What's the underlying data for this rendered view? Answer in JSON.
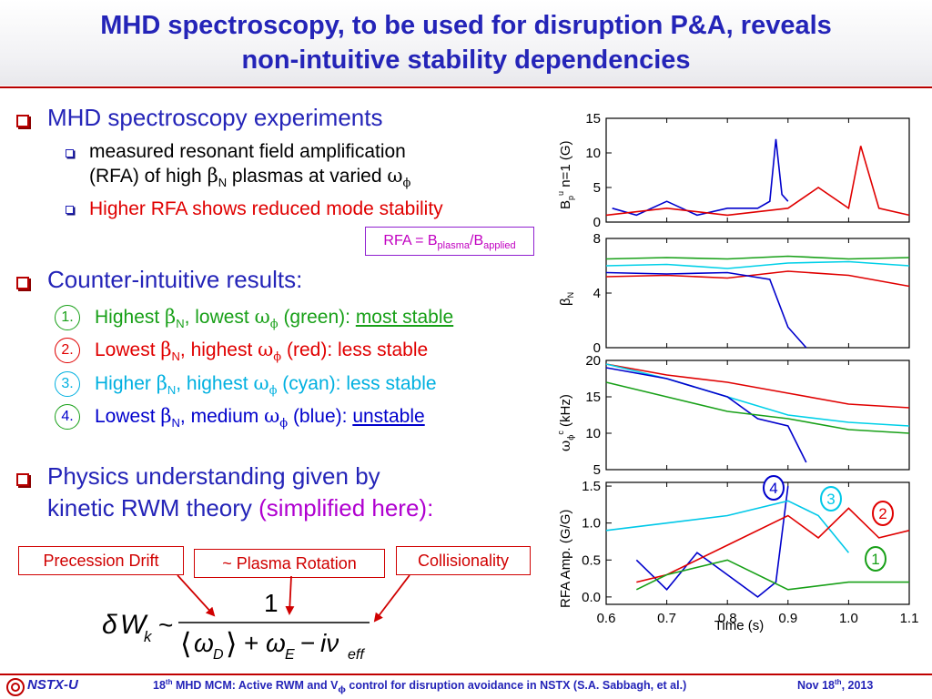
{
  "title": {
    "line1": "MHD spectroscopy, to be used for disruption P&A, reveals",
    "line2": "non-intuitive stability dependencies"
  },
  "bullets": {
    "b1": "MHD spectroscopy experiments",
    "b1_sub1_a": "measured resonant field amplification",
    "b1_sub1_b1": "(RFA) of high ",
    "b1_sub1_beta": "β",
    "b1_sub1_N": "N",
    "b1_sub1_b2": " plasmas at varied ",
    "b1_sub1_omega": "ω",
    "b1_sub1_phi": "ϕ",
    "b1_sub2": "Higher RFA shows reduced mode stability",
    "rfa_def_a": "RFA = B",
    "rfa_def_plasma": "plasma",
    "rfa_def_b": "/B",
    "rfa_def_applied": "applied",
    "b2": "Counter-intuitive results:",
    "results": [
      {
        "num": "1.",
        "a": "Highest ",
        "beta": "β",
        "N": "N",
        "b": ", lowest ",
        "omega": "ω",
        "phi": "ϕ",
        "c": " (green): ",
        "u": "most stable",
        "color": "#18a018"
      },
      {
        "num": "2.",
        "a": "Lowest ",
        "beta": "β",
        "N": "N",
        "b": ", highest ",
        "omega": "ω",
        "phi": "ϕ",
        "c": " (red): less stable",
        "u": "",
        "color": "#e00000"
      },
      {
        "num": "3.",
        "a": "Higher ",
        "beta": "β",
        "N": "N",
        "b": ", highest ",
        "omega": "ω",
        "phi": "ϕ",
        "c": " (cyan): less stable",
        "u": "",
        "color": "#00b0e0"
      },
      {
        "num": "4.",
        "a": "Lowest ",
        "beta": "β",
        "N": "N",
        "b": ", medium ",
        "omega": "ω",
        "phi": "ϕ",
        "c": " (blue): ",
        "u": "unstable",
        "color": "#0000cc"
      }
    ],
    "b3_a": "Physics understanding given by",
    "b3_b": "kinetic RWM theory ",
    "b3_c": "(simplified here):"
  },
  "boxes": {
    "precession": "Precession Drift",
    "rotation": "~ Plasma Rotation",
    "collisionality": "Collisionality"
  },
  "equation": {
    "delta": "δ",
    "W": "W",
    "k": "k",
    "sim": "~",
    "one": "1",
    "langle": "⟨",
    "omega_d": "ω",
    "D": "D",
    "rangle": "⟩",
    "plus": "+",
    "omega_e": "ω",
    "E": "E",
    "minus": "−",
    "i_nu": "iν",
    "eff": "eff"
  },
  "plot": {
    "panel1": {
      "ylabel_a": "B",
      "ylabel_p": "p",
      "ylabel_u": "u",
      "ylabel_b": " n=1 (G)",
      "yticks": [
        "15",
        "10",
        "5",
        "0"
      ]
    },
    "panel2": {
      "ylabel_a": "β",
      "ylabel_N": "N",
      "yticks": [
        "8",
        "4",
        "0"
      ]
    },
    "panel3": {
      "ylabel_a": "ω",
      "ylabel_phi": "ϕ",
      "ylabel_c": "c",
      "ylabel_b": " (kHz)",
      "yticks": [
        "20",
        "15",
        "10",
        "5"
      ]
    },
    "panel4": {
      "ylabel": "RFA Amp. (G/G)",
      "yticks": [
        "1.5",
        "1.0",
        "0.5",
        "0.0"
      ]
    },
    "xticks": [
      "0.6",
      "0.7",
      "0.8",
      "0.9",
      "1.0",
      "1.1"
    ],
    "xlabel": "Time (s)",
    "circles": [
      {
        "label": "4",
        "color": "#0000cc"
      },
      {
        "label": "3",
        "color": "#00c8e8"
      },
      {
        "label": "2",
        "color": "#e00000"
      },
      {
        "label": "1",
        "color": "#18a018"
      }
    ]
  },
  "chart_data": {
    "type": "line",
    "x_range": [
      0.6,
      1.1
    ],
    "xlabel": "Time (s)",
    "panels": [
      {
        "ylabel": "Bp u n=1 (G)",
        "ylim": [
          0,
          15
        ],
        "series": [
          {
            "color": "#0000cc",
            "x": [
              0.61,
              0.65,
              0.7,
              0.75,
              0.8,
              0.85,
              0.87,
              0.88,
              0.89,
              0.9
            ],
            "y": [
              2,
              1,
              3,
              1,
              2,
              2,
              3,
              12,
              4,
              3
            ]
          },
          {
            "color": "#e00000",
            "x": [
              0.6,
              0.7,
              0.8,
              0.9,
              0.95,
              1.0,
              1.02,
              1.05,
              1.1
            ],
            "y": [
              1,
              2,
              1,
              2,
              5,
              2,
              11,
              2,
              1
            ]
          }
        ]
      },
      {
        "ylabel": "βN",
        "ylim": [
          0,
          8
        ],
        "series": [
          {
            "color": "#18a018",
            "x": [
              0.6,
              0.7,
              0.8,
              0.9,
              1.0,
              1.1
            ],
            "y": [
              6.5,
              6.6,
              6.5,
              6.7,
              6.5,
              6.6
            ]
          },
          {
            "color": "#00d0e8",
            "x": [
              0.6,
              0.7,
              0.8,
              0.9,
              1.0,
              1.1
            ],
            "y": [
              6.0,
              6.1,
              5.8,
              6.2,
              6.3,
              6.0
            ]
          },
          {
            "color": "#e00000",
            "x": [
              0.6,
              0.7,
              0.8,
              0.9,
              1.0,
              1.1
            ],
            "y": [
              5.2,
              5.3,
              5.1,
              5.6,
              5.3,
              4.5
            ]
          },
          {
            "color": "#0000cc",
            "x": [
              0.6,
              0.7,
              0.8,
              0.87,
              0.9,
              0.93
            ],
            "y": [
              5.5,
              5.4,
              5.5,
              5.0,
              1.5,
              0
            ]
          }
        ]
      },
      {
        "ylabel": "ωϕc (kHz)",
        "ylim": [
          5,
          20
        ],
        "series": [
          {
            "color": "#e00000",
            "x": [
              0.6,
              0.7,
              0.8,
              0.9,
              1.0,
              1.1
            ],
            "y": [
              19.5,
              18,
              17,
              15.5,
              14,
              13.5
            ]
          },
          {
            "color": "#00d0e8",
            "x": [
              0.6,
              0.7,
              0.8,
              0.9,
              1.0,
              1.1
            ],
            "y": [
              19.5,
              17.5,
              15,
              12.5,
              11.5,
              11
            ]
          },
          {
            "color": "#0000cc",
            "x": [
              0.6,
              0.7,
              0.8,
              0.85,
              0.9,
              0.93
            ],
            "y": [
              19,
              17.5,
              15,
              12,
              11,
              6
            ]
          },
          {
            "color": "#18a018",
            "x": [
              0.6,
              0.7,
              0.8,
              0.9,
              1.0,
              1.1
            ],
            "y": [
              17,
              15,
              13,
              12,
              10.5,
              10
            ]
          }
        ]
      },
      {
        "ylabel": "RFA Amp. (G/G)",
        "ylim": [
          -0.1,
          1.55
        ],
        "series": [
          {
            "name": "4",
            "color": "#0000cc",
            "x": [
              0.65,
              0.7,
              0.75,
              0.8,
              0.85,
              0.88,
              0.9
            ],
            "y": [
              0.5,
              0.1,
              0.6,
              0.3,
              0.0,
              0.2,
              1.5
            ]
          },
          {
            "name": "3",
            "color": "#00c8e8",
            "x": [
              0.6,
              0.7,
              0.8,
              0.9,
              0.95,
              1.0
            ],
            "y": [
              0.9,
              1.0,
              1.1,
              1.3,
              1.1,
              0.6
            ]
          },
          {
            "name": "2",
            "color": "#e00000",
            "x": [
              0.65,
              0.7,
              0.8,
              0.9,
              0.95,
              1.0,
              1.05,
              1.1
            ],
            "y": [
              0.2,
              0.3,
              0.7,
              1.1,
              0.8,
              1.2,
              0.8,
              0.9
            ]
          },
          {
            "name": "1",
            "color": "#18a018",
            "x": [
              0.65,
              0.7,
              0.8,
              0.9,
              1.0,
              1.1
            ],
            "y": [
              0.1,
              0.3,
              0.5,
              0.1,
              0.2,
              0.2
            ]
          }
        ]
      }
    ]
  },
  "footer": {
    "logo": "NSTX-U",
    "text_a": "18",
    "text_th": "th",
    "text_b": " MHD MCM: Active RWM and V",
    "text_phi": "ϕ",
    "text_c": " control for disruption avoidance in NSTX (S.A. Sabbagh, et al.)",
    "date_a": "Nov 18",
    "date_th": "th",
    "date_b": ", 2013"
  }
}
